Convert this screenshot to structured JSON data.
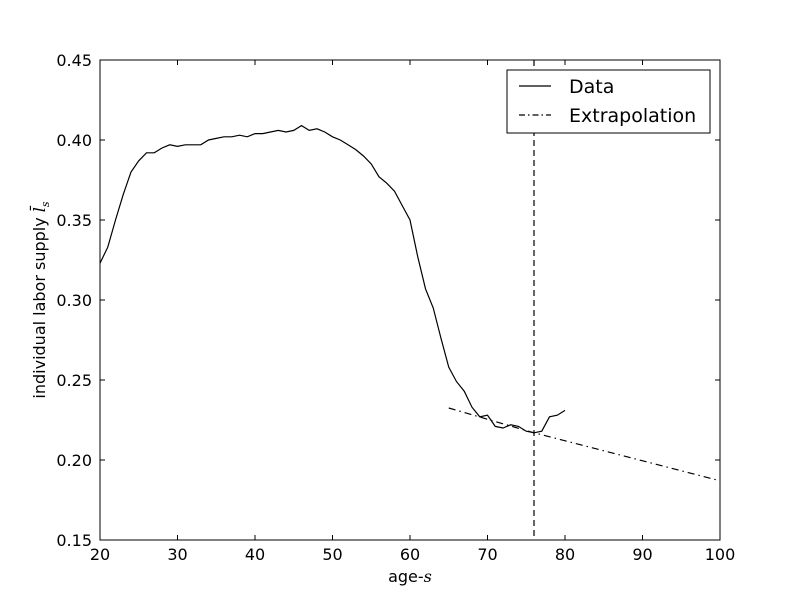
{
  "chart_data": {
    "type": "line",
    "xlabel": "age-",
    "xlabel_math": "s",
    "ylabel": "individual labor supply ",
    "ylabel_math": "l̄",
    "ylabel_sub": "s",
    "xlim": [
      20,
      100
    ],
    "ylim": [
      0.15,
      0.45
    ],
    "x_ticks": [
      20,
      30,
      40,
      50,
      60,
      70,
      80,
      90,
      100
    ],
    "x_tick_labels": [
      "20",
      "30",
      "40",
      "50",
      "60",
      "70",
      "80",
      "90",
      "100"
    ],
    "y_ticks": [
      0.15,
      0.2,
      0.25,
      0.3,
      0.35,
      0.4,
      0.45
    ],
    "y_tick_labels": [
      "0.15",
      "0.20",
      "0.25",
      "0.30",
      "0.35",
      "0.40",
      "0.45"
    ],
    "grid": false,
    "legend_position": "top-right",
    "vline_x": 76,
    "series": [
      {
        "name": "Data",
        "style": "solid",
        "color": "#000000",
        "x": [
          20,
          21,
          22,
          23,
          24,
          25,
          26,
          27,
          28,
          29,
          30,
          31,
          32,
          33,
          34,
          35,
          36,
          37,
          38,
          39,
          40,
          41,
          42,
          43,
          44,
          45,
          46,
          47,
          48,
          49,
          50,
          51,
          52,
          53,
          54,
          55,
          56,
          57,
          58,
          59,
          60,
          61,
          62,
          63,
          64,
          65,
          66,
          67,
          68,
          69,
          70,
          71,
          72,
          73,
          74,
          75,
          76,
          77,
          78,
          79,
          80
        ],
        "y": [
          0.323,
          0.333,
          0.35,
          0.366,
          0.38,
          0.387,
          0.392,
          0.392,
          0.395,
          0.397,
          0.396,
          0.397,
          0.397,
          0.397,
          0.4,
          0.401,
          0.402,
          0.402,
          0.403,
          0.402,
          0.404,
          0.404,
          0.405,
          0.406,
          0.405,
          0.406,
          0.409,
          0.406,
          0.407,
          0.405,
          0.402,
          0.4,
          0.397,
          0.394,
          0.39,
          0.385,
          0.377,
          0.373,
          0.368,
          0.359,
          0.35,
          0.327,
          0.307,
          0.295,
          0.276,
          0.258,
          0.249,
          0.243,
          0.233,
          0.227,
          0.228,
          0.221,
          0.22,
          0.222,
          0.221,
          0.218,
          0.217,
          0.218,
          0.227,
          0.228,
          0.231
        ]
      },
      {
        "name": "Extrapolation",
        "style": "dashdot",
        "color": "#000000",
        "x": [
          65,
          76,
          100
        ],
        "y": [
          0.2325,
          0.217,
          0.187
        ]
      }
    ]
  }
}
